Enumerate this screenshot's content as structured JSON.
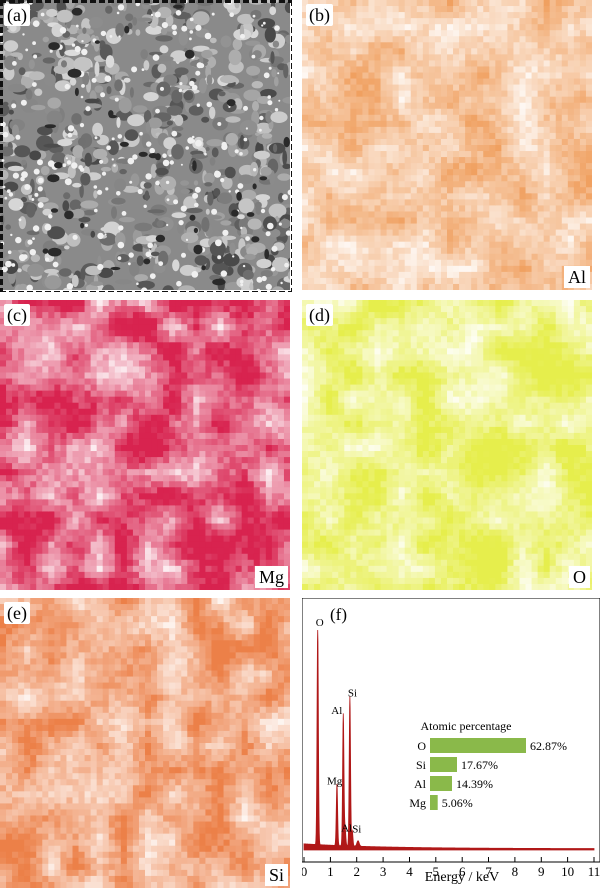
{
  "panels": {
    "a": {
      "label": "(a)"
    },
    "b": {
      "label": "(b)",
      "element": "Al",
      "color": "#f0a060"
    },
    "c": {
      "label": "(c)",
      "element": "Mg",
      "color": "#d8234f"
    },
    "d": {
      "label": "(d)",
      "element": "O",
      "color": "#e6ee4c"
    },
    "e": {
      "label": "(e)",
      "element": "Si",
      "color": "#ec8048"
    },
    "f": {
      "label": "(f)"
    }
  },
  "chart_data": {
    "type": "line",
    "xlabel": "Energy / keV",
    "xlim": [
      0,
      11
    ],
    "x_ticks": [
      "0",
      "1",
      "2",
      "3",
      "4",
      "5",
      "6",
      "7",
      "8",
      "9",
      "10",
      "11"
    ],
    "spectrum_color": "#b01818",
    "peaks": [
      {
        "label": "O",
        "x": 0.52,
        "y": 100
      },
      {
        "label": "Mg",
        "x": 1.25,
        "y": 28
      },
      {
        "label": "Al",
        "x": 1.49,
        "y": 60
      },
      {
        "label": "Si",
        "x": 1.74,
        "y": 68
      },
      {
        "label": "Al",
        "x": 1.56,
        "y": 8
      },
      {
        "label": "Si",
        "x": 1.83,
        "y": 7
      }
    ],
    "inset": {
      "title": "Atomic percentage",
      "bar_color": "#8ab94a",
      "categories": [
        "O",
        "Si",
        "Al",
        "Mg"
      ],
      "values": [
        62.87,
        17.67,
        14.39,
        5.06
      ],
      "value_labels": [
        "62.87%",
        "17.67%",
        "14.39%",
        "5.06%"
      ]
    }
  }
}
